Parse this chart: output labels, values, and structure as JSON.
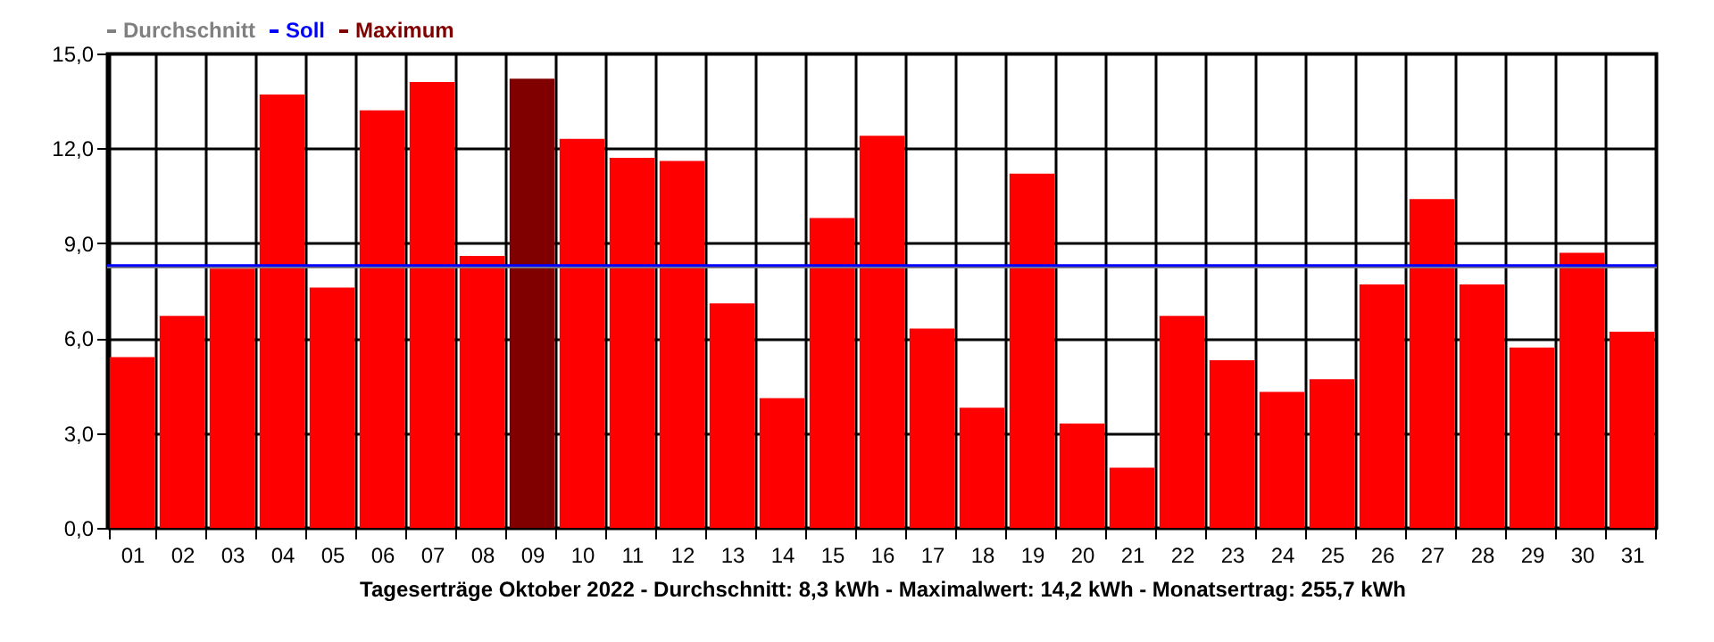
{
  "chart_data": {
    "type": "bar",
    "xlabel": "Tageserträge Oktober 2022 - Durchschnitt: 8,3 kWh - Maximalwert: 14,2 kWh - Monatsertrag: 255,7 kWh",
    "categories": [
      "01",
      "02",
      "03",
      "04",
      "05",
      "06",
      "07",
      "08",
      "09",
      "10",
      "11",
      "12",
      "13",
      "14",
      "15",
      "16",
      "17",
      "18",
      "19",
      "20",
      "21",
      "22",
      "23",
      "24",
      "25",
      "26",
      "27",
      "28",
      "29",
      "30",
      "31"
    ],
    "values": [
      5.4,
      6.7,
      8.2,
      13.7,
      7.6,
      13.2,
      14.1,
      8.6,
      14.2,
      12.3,
      11.7,
      11.6,
      7.1,
      4.1,
      9.8,
      12.4,
      6.3,
      3.8,
      11.2,
      3.3,
      1.9,
      6.7,
      5.3,
      4.3,
      4.7,
      7.7,
      10.4,
      7.7,
      5.7,
      8.7,
      6.2
    ],
    "colors": [
      "#ff0000",
      "#ff0000",
      "#ff0000",
      "#ff0000",
      "#ff0000",
      "#ff0000",
      "#ff0000",
      "#ff0000",
      "#800000",
      "#ff0000",
      "#ff0000",
      "#ff0000",
      "#ff0000",
      "#ff0000",
      "#ff0000",
      "#ff0000",
      "#ff0000",
      "#ff0000",
      "#ff0000",
      "#ff0000",
      "#ff0000",
      "#ff0000",
      "#ff0000",
      "#ff0000",
      "#ff0000",
      "#ff0000",
      "#ff0000",
      "#ff0000",
      "#ff0000",
      "#ff0000",
      "#ff0000"
    ],
    "ylim": [
      0,
      15
    ],
    "yticks": [
      {
        "value": 0,
        "label": "0,0"
      },
      {
        "value": 3,
        "label": "3,0"
      },
      {
        "value": 6,
        "label": "6,0"
      },
      {
        "value": 9,
        "label": "9,0"
      },
      {
        "value": 12,
        "label": "12,0"
      },
      {
        "value": 15,
        "label": "15,0"
      }
    ],
    "ref_lines": [
      {
        "axis": "y",
        "value": 8.25,
        "label": "Durchschnitt",
        "color": "#808080"
      },
      {
        "axis": "y",
        "value": 8.3,
        "label": "Soll",
        "color": "#0000ff"
      }
    ],
    "annotations": [
      "Maximum"
    ],
    "legend": "top left",
    "grid": true
  }
}
